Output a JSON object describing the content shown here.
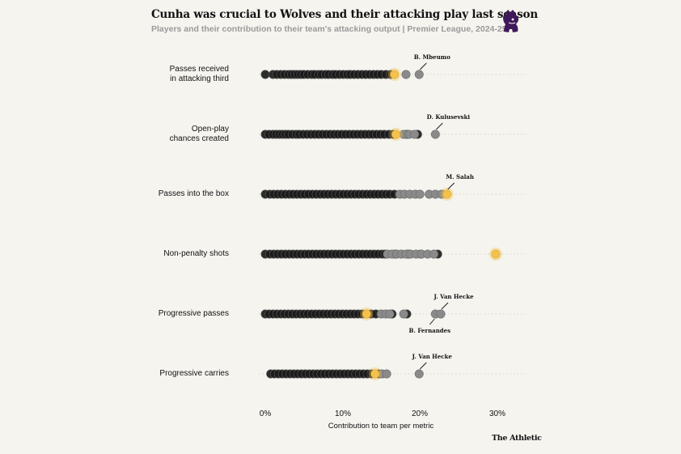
{
  "header": {
    "title": "Cunha was crucial to Wolves and their attacking play last season",
    "subtitle": "Players and their contribution to their team's attacking output | Premier League, 2024-25"
  },
  "footer": {
    "brand": "The Athletic"
  },
  "chart_data": {
    "type": "scatter",
    "xlabel": "Contribution to team per metric",
    "xlim": [
      0,
      34
    ],
    "xticks": [
      0,
      10,
      20,
      30
    ],
    "xtick_labels": [
      "0%",
      "10%",
      "20%",
      "30%"
    ],
    "grid": false,
    "legend": "none",
    "colors": {
      "other": "#1a1a1a",
      "top": "#8a8a8a",
      "highlight": "#f2c14e",
      "background": "#f5f4ef"
    },
    "rows": [
      {
        "label": "Passes received\nin attacking third",
        "highlight": 16.7,
        "top": [
          18.2,
          19.9
        ],
        "others": [
          0,
          1.0,
          1.5,
          2.0,
          2.5,
          3.0,
          3.4,
          3.8,
          4.2,
          4.6,
          5.0,
          5.5,
          6.0,
          6.4,
          6.9,
          7.3,
          7.8,
          8.2,
          8.7,
          9.1,
          9.6,
          10.1,
          10.6,
          11.0,
          11.5,
          12.0,
          12.5,
          13.0,
          13.5,
          14.0,
          14.5,
          15.0,
          15.6,
          16.2
        ],
        "annotation": {
          "text": "B. Mbeumo",
          "x": 19.9,
          "position": "above"
        }
      },
      {
        "label": "Open-play\nchances created",
        "highlight": 16.9,
        "top": [
          17.9,
          18.6,
          19.3,
          22.0
        ],
        "others": [
          0,
          0.5,
          1.0,
          1.4,
          1.8,
          2.2,
          2.6,
          3.0,
          3.5,
          4.0,
          4.4,
          4.9,
          5.4,
          5.9,
          6.4,
          6.9,
          7.4,
          7.9,
          8.4,
          8.9,
          9.4,
          9.9,
          10.4,
          10.9,
          11.4,
          11.9,
          12.4,
          12.9,
          13.4,
          13.9,
          14.4,
          14.9,
          15.4,
          16.0,
          16.5,
          18.3,
          19.7
        ],
        "annotation": {
          "text": "D. Kulusevski",
          "x": 22.0,
          "position": "above"
        }
      },
      {
        "label": "Passes into the box",
        "highlight": 23.5,
        "top": [
          17.4,
          18.0,
          18.7,
          19.4,
          20.0,
          21.2,
          22.0,
          22.8
        ],
        "others": [
          0,
          0.6,
          1.1,
          1.6,
          2.1,
          2.6,
          3.1,
          3.6,
          4.1,
          4.6,
          5.1,
          5.6,
          6.1,
          6.6,
          7.1,
          7.6,
          8.1,
          8.6,
          9.1,
          9.6,
          10.1,
          10.6,
          11.1,
          11.6,
          12.1,
          12.6,
          13.1,
          13.6,
          14.1,
          14.6,
          15.1,
          15.6,
          16.1,
          16.7
        ],
        "annotation": {
          "text": "M. Salah",
          "x": 23.5,
          "position": "above"
        }
      },
      {
        "label": "Non-penalty shots",
        "highlight": 29.8,
        "top": [
          15.8,
          16.4,
          17.0,
          17.6,
          18.2,
          18.8,
          19.5,
          20.2,
          21.0,
          21.8
        ],
        "others": [
          0,
          0.6,
          1.1,
          1.6,
          2.1,
          2.6,
          3.1,
          3.6,
          4.1,
          4.6,
          5.1,
          5.6,
          6.1,
          6.6,
          7.1,
          7.6,
          8.1,
          8.6,
          9.1,
          9.6,
          10.1,
          10.6,
          11.1,
          11.6,
          12.1,
          12.6,
          13.1,
          13.6,
          14.1,
          14.6,
          15.1,
          15.5,
          16.8,
          18.5,
          20.1,
          22.3
        ],
        "annotation": null
      },
      {
        "label": "Progressive passes",
        "highlight": 13.1,
        "top": [
          15.0,
          15.6,
          16.1,
          17.9,
          22.0,
          22.7
        ],
        "others": [
          0,
          0.5,
          1.0,
          1.5,
          2.0,
          2.5,
          3.0,
          3.5,
          4.0,
          4.5,
          5.0,
          5.5,
          6.0,
          6.5,
          7.0,
          7.5,
          8.0,
          8.5,
          9.0,
          9.5,
          10.0,
          10.5,
          11.0,
          11.5,
          12.0,
          12.5,
          13.7,
          14.3,
          16.4,
          18.3
        ],
        "annotation": [
          {
            "text": "J. Van Hecke",
            "x": 22.7,
            "position": "above"
          },
          {
            "text": "B. Fernandes",
            "x": 22.0,
            "position": "below"
          }
        ]
      },
      {
        "label": "Progressive carries",
        "highlight": 14.2,
        "top": [
          15.1,
          15.7,
          19.9
        ],
        "others": [
          0.7,
          1.2,
          1.7,
          2.2,
          2.7,
          3.2,
          3.7,
          4.2,
          4.7,
          5.2,
          5.7,
          6.2,
          6.7,
          7.2,
          7.7,
          8.2,
          8.7,
          9.2,
          9.7,
          10.2,
          10.7,
          11.2,
          11.7,
          12.2,
          12.7,
          13.2,
          13.7,
          14.7
        ],
        "annotation": {
          "text": "J. Van Hecke",
          "x": 19.9,
          "position": "above"
        }
      }
    ]
  }
}
